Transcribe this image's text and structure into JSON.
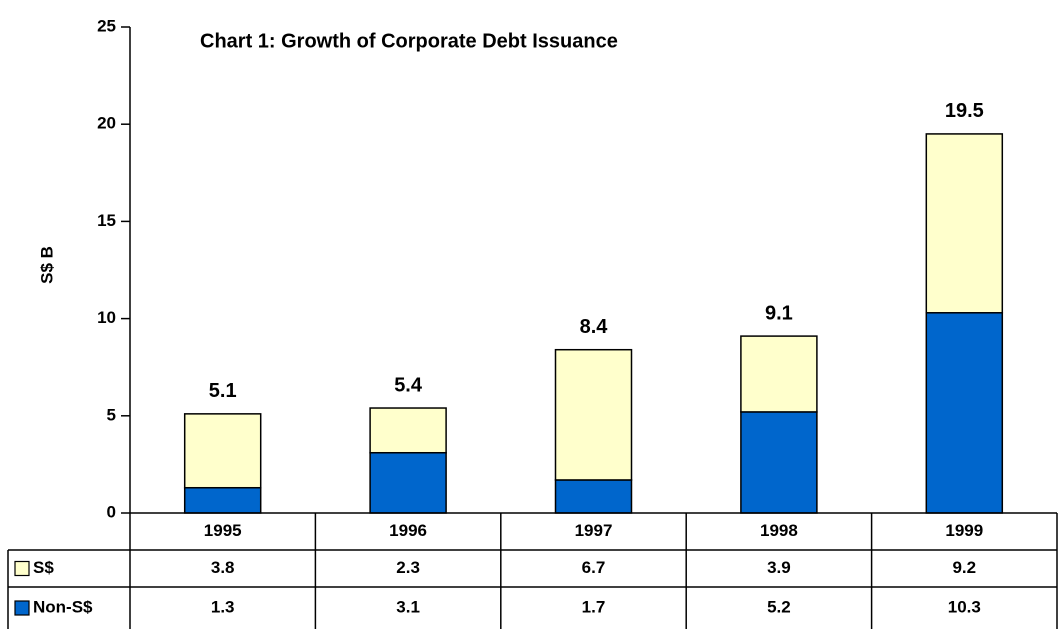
{
  "chart_data": {
    "type": "stacked_bar",
    "title": "Chart 1: Growth of Corporate Debt Issuance",
    "y_label": "S$ B",
    "categories": [
      "1995",
      "1996",
      "1997",
      "1998",
      "1999"
    ],
    "series": [
      {
        "name": "Non-S$",
        "color": "#0066cc",
        "values": [
          1.3,
          3.1,
          1.7,
          5.2,
          10.3
        ]
      },
      {
        "name": "S$",
        "color": "#ffffcc",
        "values": [
          3.8,
          2.3,
          6.7,
          3.9,
          9.2
        ]
      }
    ],
    "totals": [
      5.1,
      5.4,
      8.4,
      9.1,
      19.5
    ],
    "ylim": [
      0,
      25
    ],
    "yticks": [
      0,
      5,
      10,
      15,
      20,
      25
    ]
  }
}
